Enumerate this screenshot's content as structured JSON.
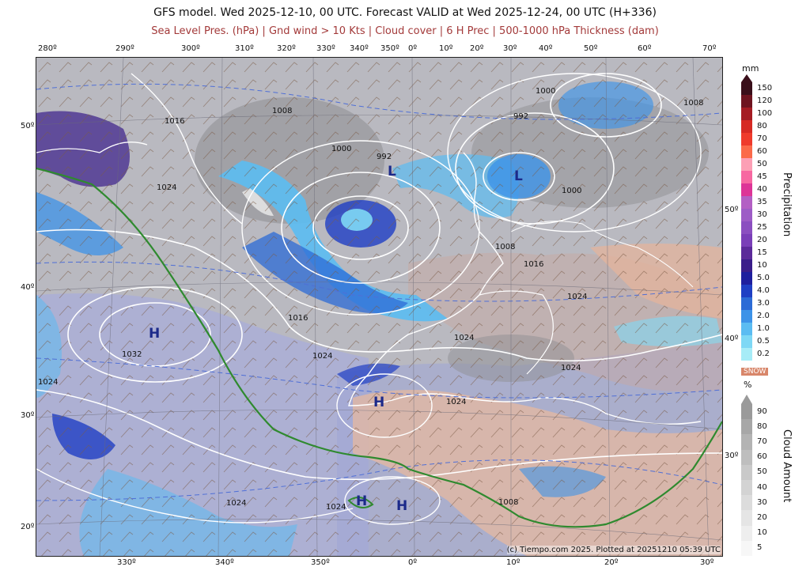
{
  "title": "GFS model. Wed 2025-12-10, 00 UTC. Forecast VALID at Wed 2025-12-24, 00 UTC (H+336)",
  "subtitle": "Sea Level Pres. (hPa) | Gnd wind > 10 Kts | Cloud cover | 6 H Prec | 500-1000 hPa Thickness (dam)",
  "top_longitudes": [
    "280º",
    "290º",
    "300º",
    "310º",
    "320º",
    "330º",
    "340º",
    "350º",
    "0º",
    "10º",
    "20º",
    "30º",
    "40º",
    "50º",
    "60º",
    "70º"
  ],
  "bottom_longitudes": [
    "330º",
    "340º",
    "350º",
    "0º",
    "10º",
    "20º",
    "30º"
  ],
  "left_latitudes": [
    "50º",
    "40º",
    "30º",
    "20º"
  ],
  "inner_latitudes": [
    "50º",
    "40º",
    "30º"
  ],
  "isobar_labels": [
    "1016",
    "1008",
    "1000",
    "992",
    "1000",
    "992",
    "1008",
    "1024",
    "1000",
    "1008",
    "1016",
    "1024",
    "1016",
    "1032",
    "1024",
    "1024",
    "1024",
    "1024",
    "1024",
    "1024",
    "1024",
    "1008"
  ],
  "pressure_centers": [
    "H",
    "H",
    "H",
    "H",
    "L",
    "L"
  ],
  "copyright": "(c) Tiempo.com 2025. Plotted at 20251210 05:39 UTC",
  "precip_legend": {
    "unit": "mm",
    "label": "Precipitation",
    "values": [
      "150",
      "120",
      "100",
      "80",
      "70",
      "60",
      "50",
      "45",
      "40",
      "35",
      "30",
      "25",
      "20",
      "15",
      "10",
      "5.0",
      "4.0",
      "3.0",
      "2.0",
      "1.0",
      "0.5",
      "0.2"
    ],
    "colors": [
      "#3a0f1a",
      "#6e1420",
      "#a51c24",
      "#d62a24",
      "#ef3b2c",
      "#fb6a4a",
      "#fc9fb5",
      "#f768a1",
      "#dd3497",
      "#b35fc4",
      "#9d5cc6",
      "#8b4fc0",
      "#7a3fb8",
      "#5c2a9a",
      "#3b1e8a",
      "#1f1f9e",
      "#1f3fc4",
      "#2c6bd6",
      "#3d93e8",
      "#5bbcf2",
      "#7ed8f5",
      "#a7ecf7"
    ]
  },
  "snow_label": "SNOW",
  "cloud_legend": {
    "unit": "%",
    "label": "Cloud Amount",
    "values": [
      "90",
      "80",
      "70",
      "60",
      "50",
      "40",
      "30",
      "20",
      "10",
      "5"
    ],
    "colors": [
      "#9a9a9a",
      "#a7a7a7",
      "#b3b3b3",
      "#bebebe",
      "#c9c9c9",
      "#d3d3d3",
      "#dcdcdc",
      "#e5e5e5",
      "#eeeeee",
      "#f7f7f7"
    ]
  }
}
